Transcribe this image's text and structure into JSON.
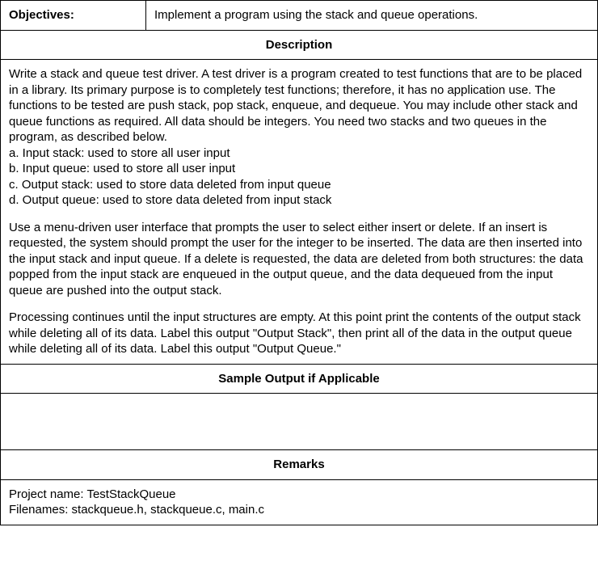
{
  "objectives": {
    "label": "Objectives:",
    "value": "Implement a program using the stack and queue operations."
  },
  "sections": {
    "description_header": "Description",
    "sample_header": "Sample Output if Applicable",
    "remarks_header": "Remarks"
  },
  "description": {
    "intro": "Write a stack and queue test driver. A test driver is a program created to test functions that are to be placed in a library. Its primary purpose is to completely test functions; therefore, it has no application use. The functions to be tested are push stack, pop stack, enqueue, and dequeue. You may include other stack and queue functions as required. All data should be integers. You need two stacks and two queues in the program, as described below.",
    "item_a": "a. Input stack: used to store all user input",
    "item_b": "b. Input queue: used to store all user input",
    "item_c": "c. Output stack: used to store data deleted from input queue",
    "item_d": "d. Output queue: used to store data deleted from input stack",
    "para2": "Use a menu-driven user interface that prompts the user to select either insert or delete. If an insert is requested, the system should prompt the user for the integer to be inserted. The data are then inserted into the input stack and input queue. If a delete is requested, the data are deleted from both structures: the data popped from the input stack are enqueued in the output queue, and the data dequeued from the input queue are pushed into the output stack.",
    "para3": "Processing continues until the input structures are empty. At this point print the contents of the output stack while deleting all of its data. Label this output \"Output Stack\", then print all of the data in the output queue while deleting all of its data. Label this output \"Output Queue.\""
  },
  "remarks": {
    "project": "Project name: TestStackQueue",
    "filenames": "Filenames: stackqueue.h, stackqueue.c, main.c"
  },
  "style": {
    "border_color": "#000000",
    "background": "#ffffff",
    "font_size_body": 15,
    "font_family": "Arial"
  }
}
